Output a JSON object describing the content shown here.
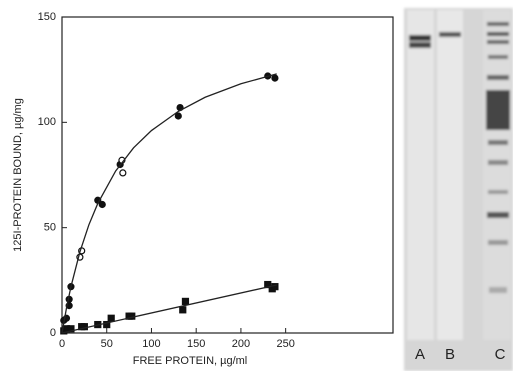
{
  "chart_data": {
    "type": "scatter",
    "xlabel": "FREE PROTEIN, µg/ml",
    "ylabel": "125I-PROTEIN BOUND, µg/mg",
    "xlim": [
      0,
      370
    ],
    "ylim": [
      0,
      150
    ],
    "xticks": [
      0,
      50,
      100,
      150,
      200,
      250
    ],
    "yticks": [
      0,
      50,
      100,
      150
    ],
    "series": [
      {
        "marker": "circle",
        "color": "#111111",
        "filled": true,
        "x": [
          2,
          5,
          8,
          8,
          10,
          40,
          45,
          65,
          130,
          132,
          230,
          238
        ],
        "values": [
          6,
          7,
          13,
          16,
          22,
          63,
          61,
          80,
          103,
          107,
          122,
          121
        ]
      },
      {
        "marker": "circle",
        "color": "#111111",
        "filled": false,
        "x": [
          20,
          22,
          67,
          68
        ],
        "values": [
          36,
          39,
          82,
          76
        ]
      },
      {
        "marker": "square",
        "color": "#111111",
        "filled": true,
        "x": [
          2,
          5,
          10,
          22,
          25,
          40,
          50,
          55,
          75,
          78,
          135,
          138,
          230,
          235,
          238
        ],
        "values": [
          1,
          2,
          2,
          3,
          3,
          4,
          4,
          7,
          8,
          8,
          11,
          15,
          23,
          21,
          22
        ]
      },
      {
        "marker": "line",
        "color": "#222222",
        "x": [
          0,
          5,
          10,
          20,
          30,
          40,
          60,
          80,
          100,
          130,
          160,
          200,
          240
        ],
        "values": [
          0,
          11.8,
          22.0,
          38.5,
          51.3,
          61.5,
          76.9,
          87.9,
          96.1,
          105.2,
          111.9,
          118.3,
          123.0
        ]
      },
      {
        "marker": "line",
        "color": "#222222",
        "x": [
          0,
          240
        ],
        "values": [
          0,
          22.8
        ]
      }
    ]
  },
  "gel": {
    "lanes": [
      "A",
      "B",
      "C"
    ]
  }
}
